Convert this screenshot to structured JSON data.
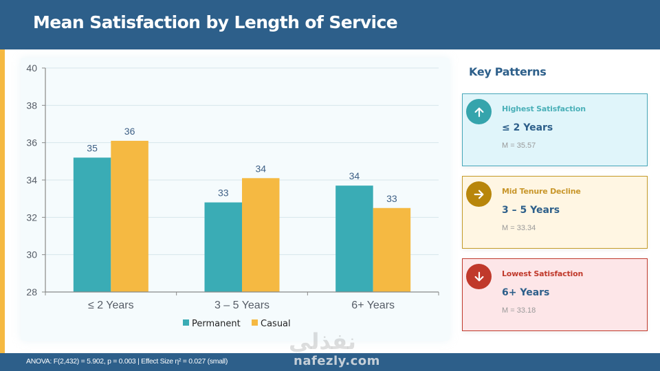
{
  "header": {
    "title": "Mean Satisfaction by Length of Service"
  },
  "colors": {
    "header_bg": "#2d5f8a",
    "accent": "#f5b942",
    "permanent": "#3aacb5",
    "casual": "#f5b942"
  },
  "chart_data": {
    "type": "bar",
    "title": "Mean Satisfaction by Length of Service",
    "xlabel": "",
    "ylabel": "",
    "categories": [
      "≤ 2 Years",
      "3 – 5 Years",
      "6+ Years"
    ],
    "series": [
      {
        "name": "Permanent",
        "color": "#3aacb5",
        "values": [
          35.2,
          32.8,
          33.7
        ],
        "labels": [
          "35",
          "33",
          "34"
        ]
      },
      {
        "name": "Casual",
        "color": "#f5b942",
        "values": [
          36.1,
          34.1,
          32.5
        ],
        "labels": [
          "36",
          "34",
          "33"
        ]
      }
    ],
    "ylim": [
      28,
      40
    ],
    "yticks": [
      28,
      30,
      32,
      34,
      36,
      38,
      40
    ],
    "grid": true,
    "legend": "bottom-center"
  },
  "side_panel": {
    "title": "Key Patterns",
    "cards": [
      {
        "icon": "arrow-up-icon",
        "label": "Highest Satisfaction",
        "value": "≤ 2 Years",
        "mean": "M = 35.57"
      },
      {
        "icon": "arrow-right-icon",
        "label": "Mid Tenure Decline",
        "value": "3 – 5 Years",
        "mean": "M = 33.34"
      },
      {
        "icon": "arrow-down-icon",
        "label": "Lowest Satisfaction",
        "value": "6+ Years",
        "mean": "M = 33.18"
      }
    ]
  },
  "footer": {
    "stats": "ANOVA: F(2,432) = 5.902, p = 0.003  |  Effect Size η² = 0.027 (small)"
  },
  "watermark": {
    "arabic": "نفذلي",
    "latin": "nafezly.com"
  }
}
